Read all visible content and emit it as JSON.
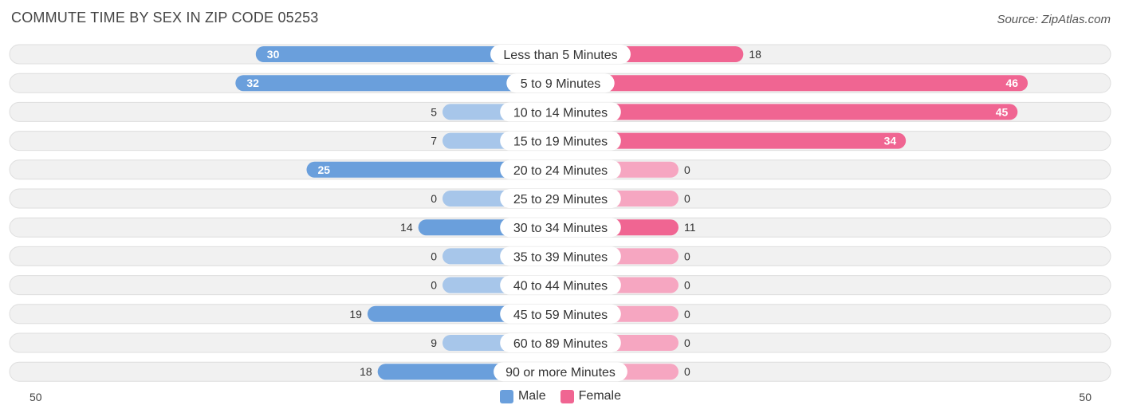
{
  "title": "COMMUTE TIME BY SEX IN ZIP CODE 05253",
  "source": "Source: ZipAtlas.com",
  "colors": {
    "male_strong": "#6a9fdc",
    "male_light": "#a7c6ea",
    "female_strong": "#f06592",
    "female_light": "#f6a6c1"
  },
  "legend": {
    "male": "Male",
    "female": "Female"
  },
  "chart_data": {
    "type": "bar",
    "orientation": "horizontal-diverging",
    "categories": [
      "Less than 5 Minutes",
      "5 to 9 Minutes",
      "10 to 14 Minutes",
      "15 to 19 Minutes",
      "20 to 24 Minutes",
      "25 to 29 Minutes",
      "30 to 34 Minutes",
      "35 to 39 Minutes",
      "40 to 44 Minutes",
      "45 to 59 Minutes",
      "60 to 89 Minutes",
      "90 or more Minutes"
    ],
    "series": [
      {
        "name": "Male",
        "values": [
          30,
          32,
          5,
          7,
          25,
          0,
          14,
          0,
          0,
          19,
          9,
          18
        ]
      },
      {
        "name": "Female",
        "values": [
          18,
          46,
          45,
          34,
          0,
          0,
          11,
          0,
          0,
          0,
          0,
          0
        ]
      }
    ],
    "axis_min_label": "50",
    "axis_max_label": "50",
    "xlim": [
      -50,
      50
    ],
    "legend_position": "bottom-center",
    "grid": false
  }
}
